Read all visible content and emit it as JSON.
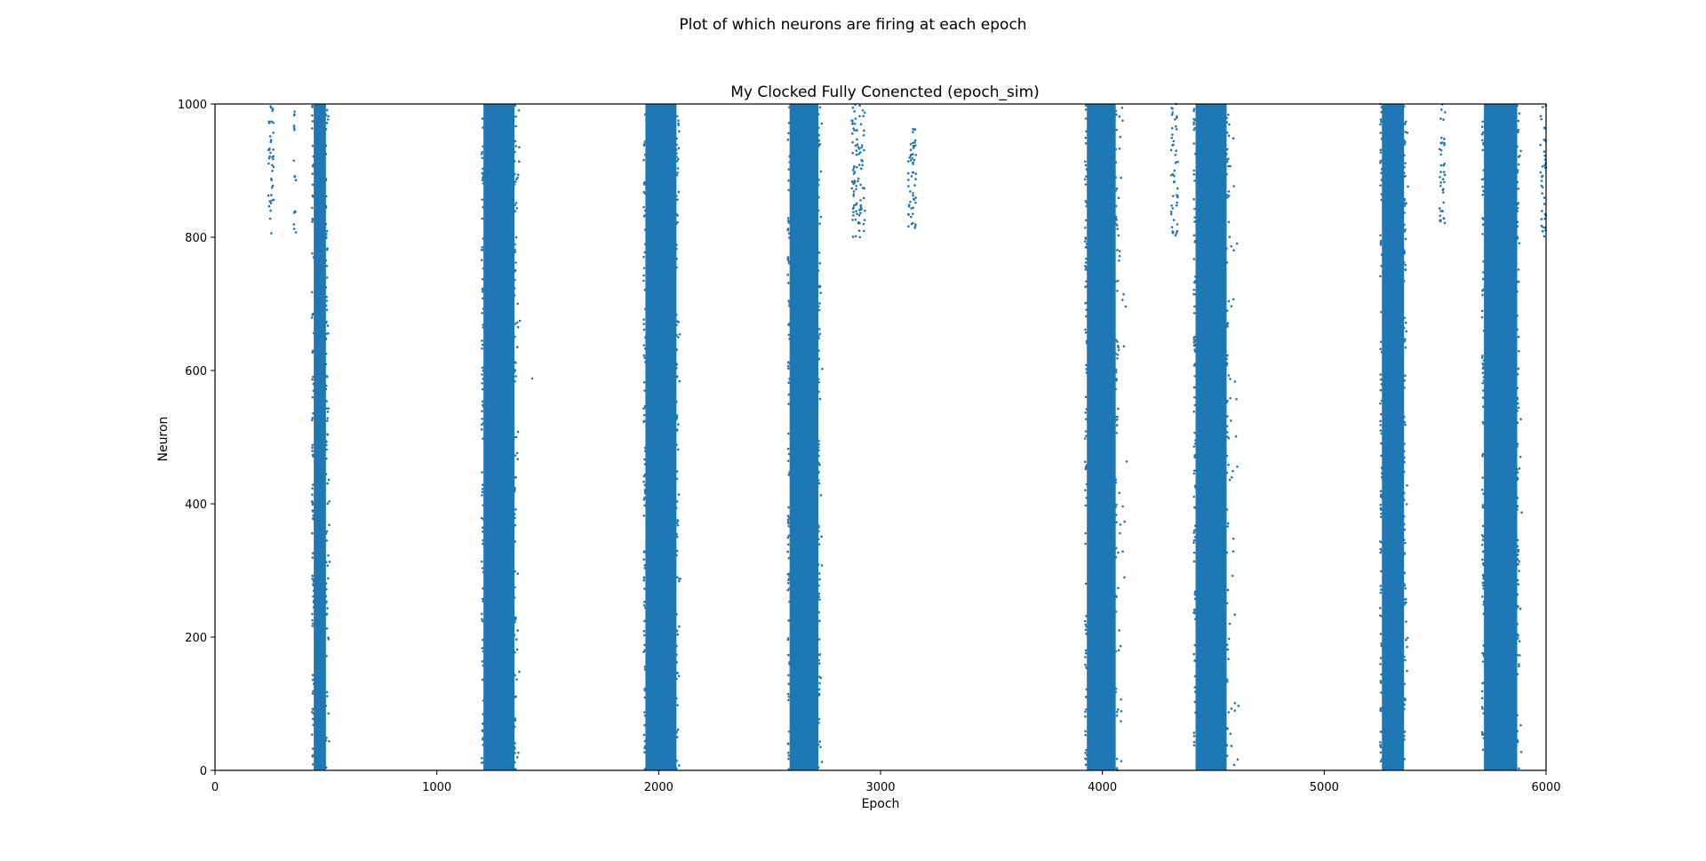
{
  "figure": {
    "suptitle": "Plot of which neurons are firing at each epoch"
  },
  "chart_data": {
    "type": "scatter",
    "title": "My Clocked Fully Conencted (epoch_sim)",
    "xlabel": "Epoch",
    "ylabel": "Neuron",
    "xlim": [
      0,
      6000
    ],
    "ylim": [
      0,
      1000
    ],
    "xticks": [
      0,
      1000,
      2000,
      3000,
      4000,
      5000,
      6000
    ],
    "yticks": [
      0,
      200,
      400,
      600,
      800,
      1000
    ],
    "grid": false,
    "legend": "none",
    "marker_color": "#1f77b4",
    "bursts": [
      {
        "core": [
          445,
          500
        ],
        "neurons": [
          0,
          1000
        ],
        "tail_to": 520
      },
      {
        "core": [
          1210,
          1350
        ],
        "neurons": [
          0,
          1000
        ],
        "tail_to": 1380
      },
      {
        "core": [
          1940,
          2080
        ],
        "neurons": [
          0,
          1000
        ],
        "tail_to": 2100
      },
      {
        "core": [
          2590,
          2720
        ],
        "neurons": [
          0,
          1000
        ],
        "tail_to": 2740
      },
      {
        "core": [
          3930,
          4060
        ],
        "neurons": [
          0,
          1000
        ],
        "tail_to": 4120
      },
      {
        "core": [
          4420,
          4560
        ],
        "neurons": [
          0,
          1000
        ],
        "tail_to": 4620
      },
      {
        "core": [
          5260,
          5360
        ],
        "neurons": [
          0,
          1000
        ],
        "tail_to": 5380
      },
      {
        "core": [
          5720,
          5870
        ],
        "neurons": [
          0,
          1000
        ],
        "tail_to": 5890
      }
    ],
    "sparse_clusters": [
      {
        "x": [
          240,
          265
        ],
        "neurons": [
          800,
          1000
        ]
      },
      {
        "x": [
          355,
          365
        ],
        "neurons": [
          800,
          1000
        ]
      },
      {
        "x": [
          2870,
          2930
        ],
        "neurons": [
          800,
          1000
        ]
      },
      {
        "x": [
          3125,
          3160
        ],
        "neurons": [
          810,
          970
        ]
      },
      {
        "x": [
          4310,
          4340
        ],
        "neurons": [
          800,
          1000
        ]
      },
      {
        "x": [
          5520,
          5545
        ],
        "neurons": [
          800,
          1000
        ]
      },
      {
        "x": [
          5975,
          6000
        ],
        "neurons": [
          800,
          1000
        ]
      }
    ],
    "isolated_points": [
      {
        "x": 1430,
        "neuron": 588
      },
      {
        "x": 5890,
        "neuron": 387
      },
      {
        "x": 4060,
        "neuron": 395
      },
      {
        "x": 4075,
        "neuron": 765
      }
    ]
  }
}
